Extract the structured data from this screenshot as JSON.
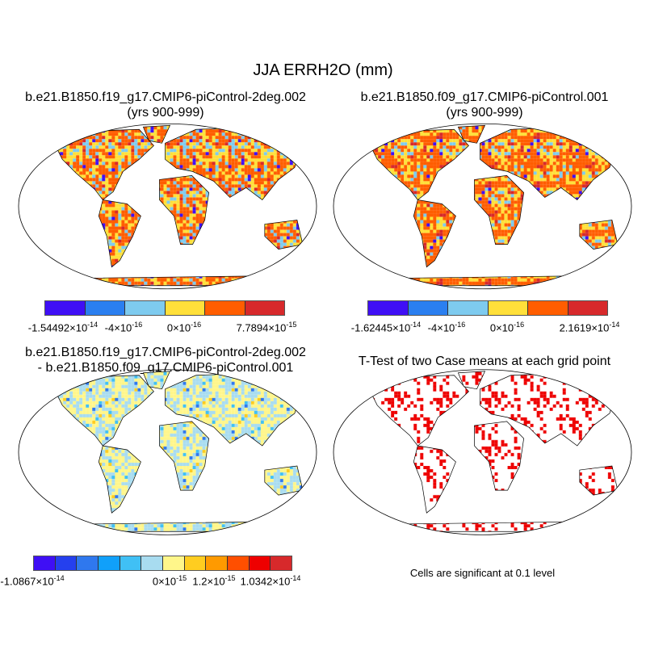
{
  "title": "JJA ERRH2O (mm)",
  "panels": [
    {
      "title_line1": "b.e21.B1850.f19_g17.CMIP6-piControl-2deg.002",
      "title_line2": "(yrs 900-999)",
      "colorbar": {
        "colors": [
          "#3f0ff5",
          "#2a7ff0",
          "#7ecbef",
          "#ffe03a",
          "#ff5d00",
          "#d7292b"
        ],
        "labels": [
          {
            "mant": "-1.54492",
            "exp": "-14"
          },
          {
            "mant": "-4",
            "exp": "-16"
          },
          {
            "mant": "0",
            "exp": "-16"
          },
          {
            "mant": "7.7894",
            "exp": "-15"
          }
        ]
      }
    },
    {
      "title_line1": "b.e21.B1850.f09_g17.CMIP6-piControl.001",
      "title_line2": "(yrs 900-999)",
      "colorbar": {
        "colors": [
          "#3f0ff5",
          "#2a7ff0",
          "#7ecbef",
          "#ffe03a",
          "#ff5d00",
          "#d7292b"
        ],
        "labels": [
          {
            "mant": "-1.62445",
            "exp": "-14"
          },
          {
            "mant": "-4",
            "exp": "-16"
          },
          {
            "mant": "0",
            "exp": "-16"
          },
          {
            "mant": "2.1619",
            "exp": "-14"
          }
        ]
      }
    },
    {
      "title_line1": "b.e21.B1850.f19_g17.CMIP6-piControl-2deg.002",
      "title_line2": "- b.e21.B1850.f09_g17.CMIP6-piControl.001",
      "colorbar": {
        "colors": [
          "#3f0ff5",
          "#2540ee",
          "#2f78ee",
          "#10a0fa",
          "#40c0f5",
          "#a8dcf0",
          "#fff68a",
          "#ffcd20",
          "#ff9a00",
          "#ff4f00",
          "#ee0000",
          "#d7292b"
        ],
        "labels": [
          {
            "mant": "-1.0867",
            "exp": "-14"
          },
          {
            "mant": "0",
            "exp": "-15"
          },
          {
            "mant": "1.2",
            "exp": "-15"
          },
          {
            "mant": "1.0342",
            "exp": "-14"
          }
        ]
      }
    },
    {
      "title_line1": "T-Test of two Case means at each grid point",
      "note": "Cells are significant at 0.1 level"
    }
  ],
  "map_colors": {
    "land_outline": "#000000",
    "ttest_fill": "#ee0000"
  }
}
